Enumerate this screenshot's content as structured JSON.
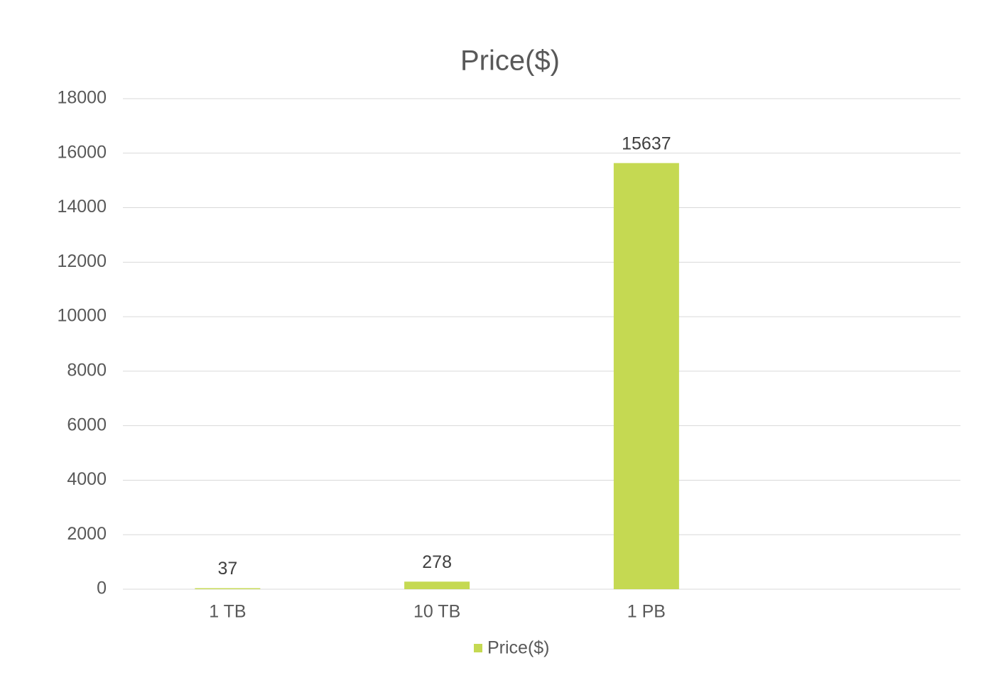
{
  "chart_data": {
    "type": "bar",
    "title": "Price($)",
    "categories": [
      "1 TB",
      "10 TB",
      "1 PB",
      null
    ],
    "series": [
      {
        "name": "Price($)",
        "color": "#c5d952",
        "values": [
          37,
          278,
          15637,
          null
        ]
      }
    ],
    "ylim": [
      0,
      18000
    ],
    "yticks": [
      0,
      2000,
      4000,
      6000,
      8000,
      10000,
      12000,
      14000,
      16000,
      18000
    ],
    "grid": true,
    "legend": "bottom",
    "data_labels": true
  }
}
